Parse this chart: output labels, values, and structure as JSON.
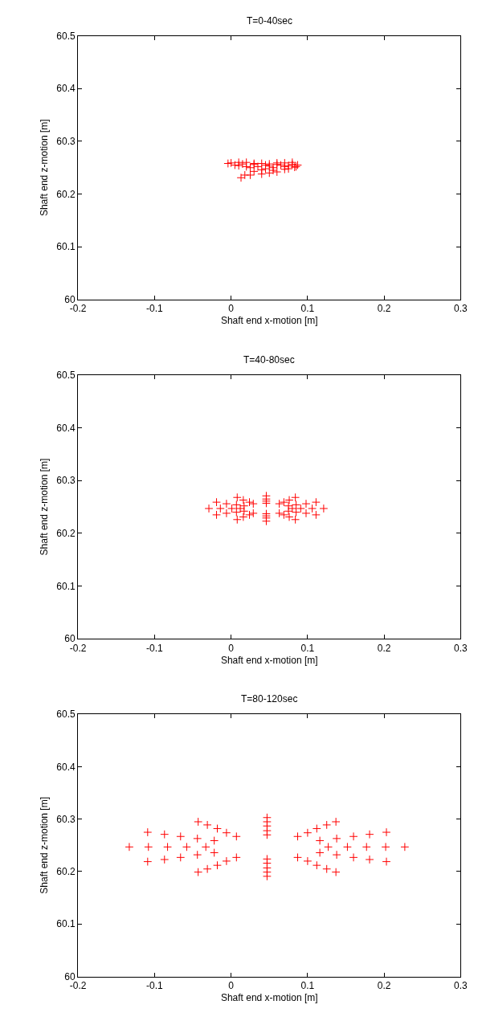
{
  "chart_data": [
    {
      "type": "scatter",
      "title": "T=0-40sec",
      "xlabel": "Shaft end x-motion [m]",
      "ylabel": "Shaft end z-motion [m]",
      "color": "#ff0000",
      "marker": "cross",
      "xlim": [
        -0.2,
        0.3
      ],
      "ylim": [
        60,
        60.5
      ],
      "xticks": [
        -0.2,
        -0.1,
        0,
        0.1,
        0.2,
        0.3
      ],
      "yticks": [
        60,
        60.1,
        60.2,
        60.3,
        60.4,
        60.5
      ],
      "x": [
        0.0,
        0.01,
        0.02,
        0.03,
        0.04,
        0.05,
        0.06,
        0.07,
        0.08,
        0.087,
        0.083,
        0.075,
        0.06,
        0.05,
        0.04,
        0.025,
        0.013,
        0.018,
        0.03,
        0.045,
        0.055,
        0.07,
        0.08,
        0.065,
        0.05,
        0.035,
        0.02,
        0.005,
        -0.004,
        0.01,
        0.025,
        0.04,
        0.055,
        0.07,
        0.085,
        0.075,
        0.06,
        0.045,
        0.03,
        0.015
      ],
      "values": [
        60.259,
        60.26,
        60.26,
        60.258,
        60.258,
        60.257,
        60.259,
        60.259,
        60.26,
        60.255,
        60.251,
        60.248,
        60.242,
        60.24,
        60.238,
        60.236,
        60.231,
        60.236,
        60.243,
        60.248,
        60.25,
        60.252,
        60.256,
        60.255,
        60.253,
        60.252,
        60.252,
        60.255,
        60.258,
        60.254,
        60.25,
        60.246,
        60.245,
        60.247,
        60.252,
        60.254,
        60.256,
        60.255,
        60.256,
        60.257
      ]
    },
    {
      "type": "scatter",
      "title": "T=40-80sec",
      "xlabel": "Shaft end x-motion [m]",
      "ylabel": "Shaft end z-motion [m]",
      "color": "#ff0000",
      "marker": "cross",
      "xlim": [
        -0.2,
        0.3
      ],
      "ylim": [
        60,
        60.5
      ],
      "xticks": [
        -0.2,
        -0.1,
        0,
        0.1,
        0.2,
        0.3
      ],
      "yticks": [
        60,
        60.1,
        60.2,
        60.3,
        60.4,
        60.5
      ],
      "x": [
        0.121,
        0.111,
        0.084,
        0.046,
        0.008,
        -0.019,
        -0.029,
        -0.019,
        0.008,
        0.046,
        0.084,
        0.111,
        0.106,
        0.098,
        0.076,
        0.046,
        0.016,
        -0.006,
        -0.014,
        -0.006,
        0.016,
        0.046,
        0.076,
        0.098,
        0.091,
        0.085,
        0.069,
        0.046,
        0.024,
        0.007,
        0.001,
        0.007,
        0.024,
        0.046,
        0.069,
        0.085,
        0.08,
        0.075,
        0.063,
        0.046,
        0.029,
        0.017,
        0.012,
        0.017,
        0.029,
        0.046,
        0.063,
        0.075
      ],
      "values": [
        60.247,
        60.259,
        60.268,
        60.271,
        60.268,
        60.259,
        60.247,
        60.235,
        60.226,
        60.223,
        60.226,
        60.235,
        60.247,
        60.256,
        60.263,
        60.265,
        60.263,
        60.256,
        60.247,
        60.238,
        60.231,
        60.229,
        60.231,
        60.238,
        60.247,
        60.254,
        60.259,
        60.261,
        60.259,
        60.254,
        60.247,
        60.24,
        60.235,
        60.233,
        60.235,
        60.24,
        60.247,
        60.252,
        60.256,
        60.257,
        60.256,
        60.252,
        60.247,
        60.242,
        60.238,
        60.237,
        60.238,
        60.242
      ]
    },
    {
      "type": "scatter",
      "title": "T=80-120sec",
      "xlabel": "Shaft end x-motion [m]",
      "ylabel": "Shaft end z-motion [m]",
      "color": "#ff0000",
      "marker": "cross",
      "xlim": [
        -0.2,
        0.3
      ],
      "ylim": [
        60,
        60.5
      ],
      "xticks": [
        -0.2,
        -0.1,
        0,
        0.1,
        0.2,
        0.3
      ],
      "yticks": [
        60,
        60.1,
        60.2,
        60.3,
        60.4,
        60.5
      ],
      "x": [
        0.227,
        0.203,
        0.137,
        0.047,
        -0.043,
        -0.109,
        -0.133,
        -0.109,
        -0.043,
        0.047,
        0.137,
        0.203,
        0.202,
        0.181,
        0.125,
        0.047,
        -0.031,
        -0.087,
        -0.108,
        -0.087,
        -0.031,
        0.047,
        0.125,
        0.181,
        0.177,
        0.16,
        0.112,
        0.047,
        -0.018,
        -0.066,
        -0.083,
        -0.066,
        -0.018,
        0.047,
        0.112,
        0.16,
        0.152,
        0.138,
        0.1,
        0.047,
        -0.006,
        -0.044,
        -0.058,
        -0.044,
        -0.006,
        0.047,
        0.1,
        0.138,
        0.127,
        0.116,
        0.087,
        0.047,
        0.007,
        -0.022,
        -0.033,
        -0.022,
        0.007,
        0.047,
        0.087,
        0.116
      ],
      "values": [
        60.247,
        60.275,
        60.295,
        60.303,
        60.295,
        60.275,
        60.247,
        60.219,
        60.199,
        60.191,
        60.199,
        60.219,
        60.247,
        60.271,
        60.289,
        60.295,
        60.289,
        60.271,
        60.247,
        60.223,
        60.205,
        60.199,
        60.205,
        60.223,
        60.247,
        60.267,
        60.282,
        60.287,
        60.282,
        60.267,
        60.247,
        60.227,
        60.212,
        60.207,
        60.212,
        60.227,
        60.247,
        60.263,
        60.274,
        60.278,
        60.274,
        60.263,
        60.247,
        60.232,
        60.22,
        60.216,
        60.22,
        60.232,
        60.247,
        60.259,
        60.267,
        60.27,
        60.267,
        60.259,
        60.247,
        60.236,
        60.227,
        60.224,
        60.227,
        60.236
      ]
    }
  ]
}
